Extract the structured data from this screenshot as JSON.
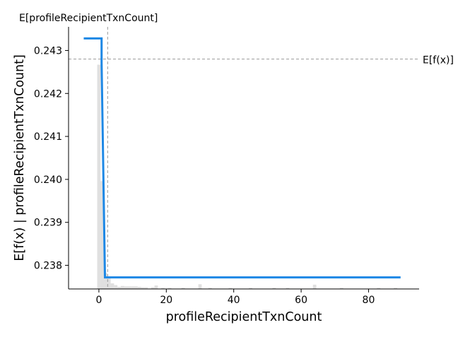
{
  "chart_data": {
    "type": "line",
    "xlabel": "profileRecipientTxnCount",
    "ylabel": "E[f(x) | profileRecipientTxnCount]",
    "xlim": [
      -9,
      95
    ],
    "ylim": [
      0.23745,
      0.24355
    ],
    "x_ticks": [
      0,
      20,
      40,
      60,
      80
    ],
    "y_ticks": [
      0.238,
      0.239,
      0.24,
      0.241,
      0.242,
      0.243
    ],
    "y_tick_format_decimals": 3,
    "series": [
      {
        "color": "#1e88e5",
        "x": [
          -4.5,
          0.8,
          0.8,
          1.8,
          1.8,
          89.5
        ],
        "y": [
          0.24328,
          0.24328,
          0.24272,
          0.23772,
          0.23772,
          0.23772
        ]
      }
    ],
    "expected_value": {
      "label": "E[f(x)]",
      "y": 0.2428,
      "color": "#999999"
    },
    "feature_expected_value": {
      "label": "E[profileRecipientTxnCount]",
      "x": 2.6,
      "color": "#999999"
    },
    "histogram": {
      "color": "#cccccc",
      "bin_width": 1,
      "bins": [
        {
          "x": 0,
          "height": 0.24267
        },
        {
          "x": 1,
          "height": 0.23996
        },
        {
          "x": 2,
          "height": 0.23782
        },
        {
          "x": 3,
          "height": 0.2377
        },
        {
          "x": 4,
          "height": 0.23758
        },
        {
          "x": 5,
          "height": 0.23754
        },
        {
          "x": 6,
          "height": 0.2375
        },
        {
          "x": 7,
          "height": 0.23752
        },
        {
          "x": 8,
          "height": 0.23751
        },
        {
          "x": 9,
          "height": 0.23751
        },
        {
          "x": 10,
          "height": 0.23751
        },
        {
          "x": 11,
          "height": 0.23751
        },
        {
          "x": 12,
          "height": 0.2375
        },
        {
          "x": 13,
          "height": 0.23749
        },
        {
          "x": 14,
          "height": 0.23749
        },
        {
          "x": 16,
          "height": 0.23749
        },
        {
          "x": 17,
          "height": 0.23753
        },
        {
          "x": 19,
          "height": 0.23748
        },
        {
          "x": 21,
          "height": 0.23748
        },
        {
          "x": 25,
          "height": 0.23748
        },
        {
          "x": 30,
          "height": 0.23756
        },
        {
          "x": 33,
          "height": 0.23748
        },
        {
          "x": 39,
          "height": 0.23748
        },
        {
          "x": 45,
          "height": 0.23748
        },
        {
          "x": 52,
          "height": 0.23748
        },
        {
          "x": 56,
          "height": 0.23748
        },
        {
          "x": 64,
          "height": 0.23755
        },
        {
          "x": 72,
          "height": 0.23748
        },
        {
          "x": 83,
          "height": 0.23748
        },
        {
          "x": 88,
          "height": 0.23748
        }
      ]
    }
  }
}
